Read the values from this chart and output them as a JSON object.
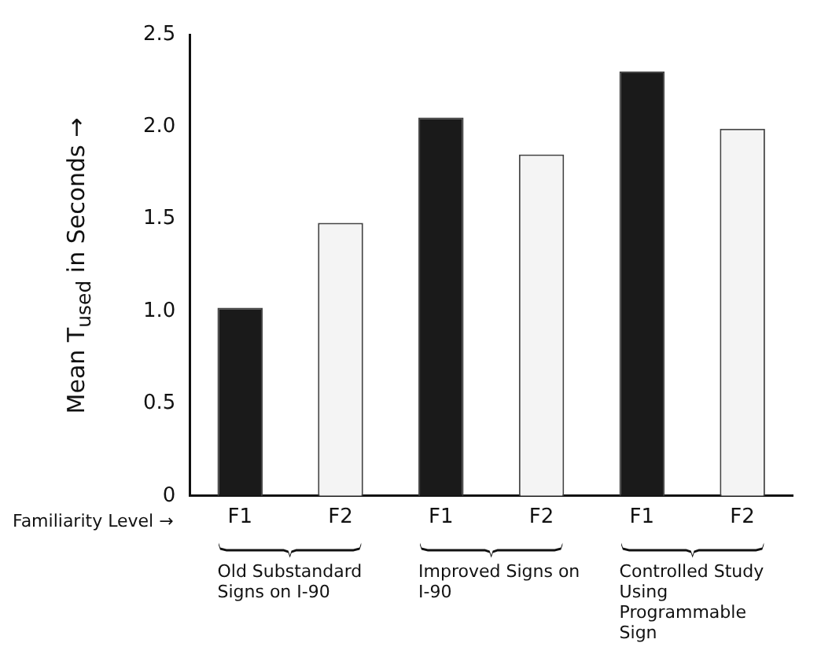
{
  "chart_data": {
    "type": "bar",
    "ylabel": "Mean T$_{used}$ in Seconds →",
    "categories": [
      "F1",
      "F2",
      "F1",
      "F2",
      "F1",
      "F2"
    ],
    "values": [
      1.02,
      1.48,
      2.05,
      1.85,
      2.3,
      1.99
    ],
    "colors": [
      "#1a1a1a",
      "#f4f4f4",
      "#1a1a1a",
      "#f4f4f4",
      "#1a1a1a",
      "#f4f4f4"
    ],
    "ylim": [
      0,
      2.5
    ],
    "yticks": [
      0,
      0.5,
      {
        "value": 1,
        "label": "1.0"
      },
      1.5,
      {
        "value": 2,
        "label": "2.0"
      },
      2.5
    ],
    "grid": false,
    "legend": false,
    "annotations": [
      "Familiarity Level →",
      "Old Substandard Signs on I-90",
      "Improved Signs on I-90",
      "Controlled Study Using Programmable Sign"
    ]
  }
}
